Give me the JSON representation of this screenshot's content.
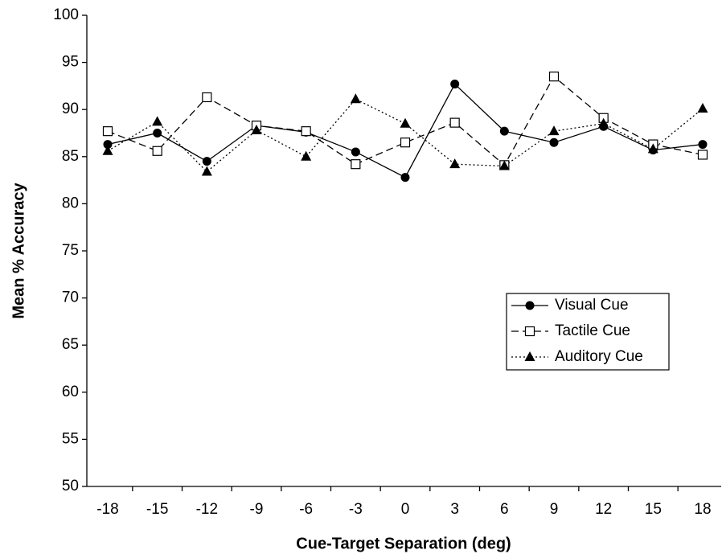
{
  "chart_data": {
    "type": "line",
    "x_label": "Cue-Target Separation (deg)",
    "y_label": "Mean % Accuracy",
    "x": [
      -18,
      -15,
      -12,
      -9,
      -6,
      -3,
      0,
      3,
      6,
      9,
      12,
      15,
      18
    ],
    "series": [
      {
        "name": "Visual Cue",
        "color": "#000000",
        "marker": "circle",
        "dash": "solid",
        "values": [
          86.3,
          87.5,
          84.5,
          88.3,
          87.6,
          85.5,
          82.8,
          92.7,
          87.7,
          86.5,
          88.2,
          85.7,
          86.3
        ]
      },
      {
        "name": "Tactile Cue",
        "color": "#000000",
        "marker": "square",
        "dash": "dashed",
        "values": [
          87.7,
          85.6,
          91.3,
          88.3,
          87.7,
          84.2,
          86.5,
          88.6,
          84.1,
          93.5,
          89.1,
          86.3,
          85.2
        ]
      },
      {
        "name": "Auditory Cue",
        "color": "#000000",
        "marker": "triangle",
        "dash": "dotted",
        "values": [
          85.6,
          88.7,
          83.4,
          87.8,
          85.0,
          91.1,
          88.5,
          84.2,
          84.0,
          87.7,
          88.5,
          85.8,
          90.1
        ]
      }
    ],
    "xlim": [
      -18,
      18
    ],
    "ylim": [
      50,
      100
    ],
    "yticks": [
      50,
      55,
      60,
      65,
      70,
      75,
      80,
      85,
      90,
      95,
      100
    ],
    "legend": "right"
  }
}
